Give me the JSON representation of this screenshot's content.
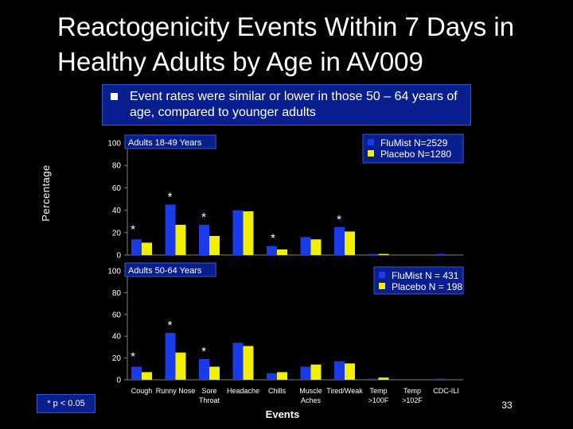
{
  "title": "Reactogenicity Events Within 7 Days in Healthy Adults by Age in AV009",
  "bullet": "Event rates were similar or lower in those 50 – 64 years of age, compared to younger adults",
  "y_axis_title": "Percentage",
  "x_axis_title": "Events",
  "footnote": "* p < 0.05",
  "page_number": "33",
  "colors": {
    "flumist": "#1a3be8",
    "placebo": "#f0f000",
    "panel_box": "#0a1f8f",
    "background": "#000000"
  },
  "chart_data": [
    {
      "type": "bar",
      "panel_title": "Adults 18-49 Years",
      "categories": [
        "Cough",
        "Runny Nose",
        "Sore Throat",
        "Headache",
        "Chills",
        "Muscle Aches",
        "Tired/Weak",
        "Temp >100F",
        "Temp >102F",
        "CDC-ILI"
      ],
      "series": [
        {
          "name": "FluMist N=2529",
          "values": [
            14,
            45,
            27,
            40,
            8,
            16,
            25,
            1,
            0,
            1
          ]
        },
        {
          "name": "Placebo N=1280",
          "values": [
            11,
            27,
            17,
            39,
            5,
            14,
            21,
            1,
            0,
            0
          ]
        }
      ],
      "significant": [
        "*",
        "*",
        "*",
        "",
        "*",
        "",
        "*",
        "",
        "",
        ""
      ],
      "yticks": [
        "0",
        "20",
        "40",
        "60",
        "80",
        "100"
      ],
      "ylim": [
        0,
        100
      ]
    },
    {
      "type": "bar",
      "panel_title": "Adults 50-64 Years",
      "categories": [
        "Cough",
        "Runny Nose",
        "Sore Throat",
        "Headache",
        "Chills",
        "Muscle Aches",
        "Tired/Weak",
        "Temp >100F",
        "Temp >102F",
        "CDC-ILI"
      ],
      "series": [
        {
          "name": "FluMist   N = 431",
          "values": [
            12,
            43,
            19,
            34,
            6,
            12,
            17,
            1,
            0,
            1
          ]
        },
        {
          "name": "Placebo N = 198",
          "values": [
            7,
            25,
            12,
            31,
            7,
            14,
            15,
            2,
            0,
            0
          ]
        }
      ],
      "significant": [
        "*",
        "*",
        "*",
        "",
        "",
        "",
        "",
        "",
        "",
        ""
      ],
      "yticks": [
        "0",
        "20",
        "40",
        "60",
        "80",
        "100"
      ],
      "ylim": [
        0,
        100
      ]
    }
  ],
  "category_labels": [
    [
      "Cough"
    ],
    [
      "Runny Nose"
    ],
    [
      "Sore",
      "Throat"
    ],
    [
      "Headache"
    ],
    [
      "Chills"
    ],
    [
      "Muscle",
      "Aches"
    ],
    [
      "Tired/Weak"
    ],
    [
      "Temp",
      ">100F"
    ],
    [
      "Temp",
      ">102F"
    ],
    [
      "CDC-ILI"
    ]
  ]
}
